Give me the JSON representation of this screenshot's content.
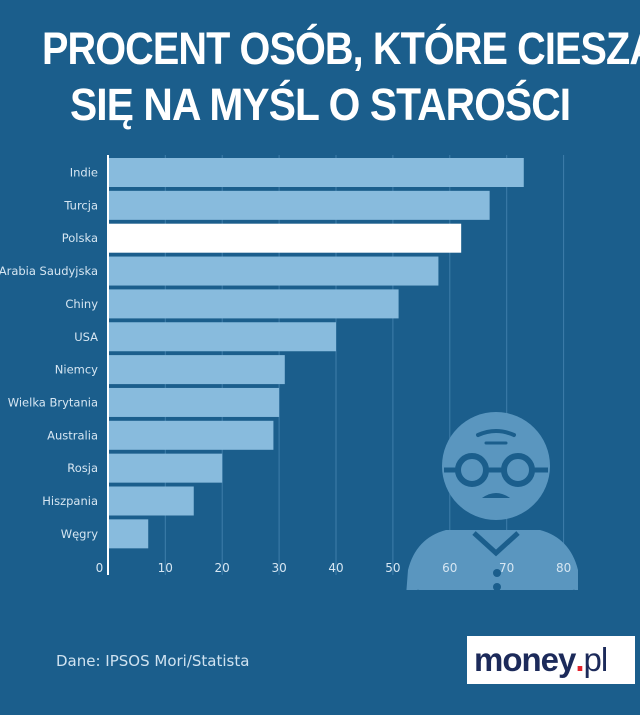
{
  "title": {
    "line1": "PROCENT OSÓB, KTÓRE CIESZĄ",
    "line2": "SIĘ NA MYŚL O STAROŚCI"
  },
  "source": "Dane: IPSOS Mori/Statista",
  "logo": {
    "text": "money.pl",
    "brand": "money",
    "dot": ".",
    "tld": "pl"
  },
  "colors": {
    "background": "#1b5e8c",
    "bar": "#88bbdd",
    "highlight_bar": "#ffffff",
    "illustration": "#5a96bf"
  },
  "illustration": "old-man-with-glasses-icon",
  "chart_data": {
    "type": "bar",
    "orientation": "horizontal",
    "categories": [
      "Indie",
      "Turcja",
      "Polska",
      "Arabia Saudyjska",
      "Chiny",
      "USA",
      "Niemcy",
      "Wielka Brytania",
      "Australia",
      "Rosja",
      "Hiszpania",
      "Węgry"
    ],
    "values": [
      73,
      67,
      62,
      58,
      51,
      40,
      31,
      30,
      29,
      20,
      15,
      7
    ],
    "highlight": "Polska",
    "xlim": [
      0,
      80
    ],
    "xticks": [
      "0",
      "10",
      "20",
      "30",
      "40",
      "50",
      "60",
      "70",
      "80"
    ],
    "grid": true
  }
}
